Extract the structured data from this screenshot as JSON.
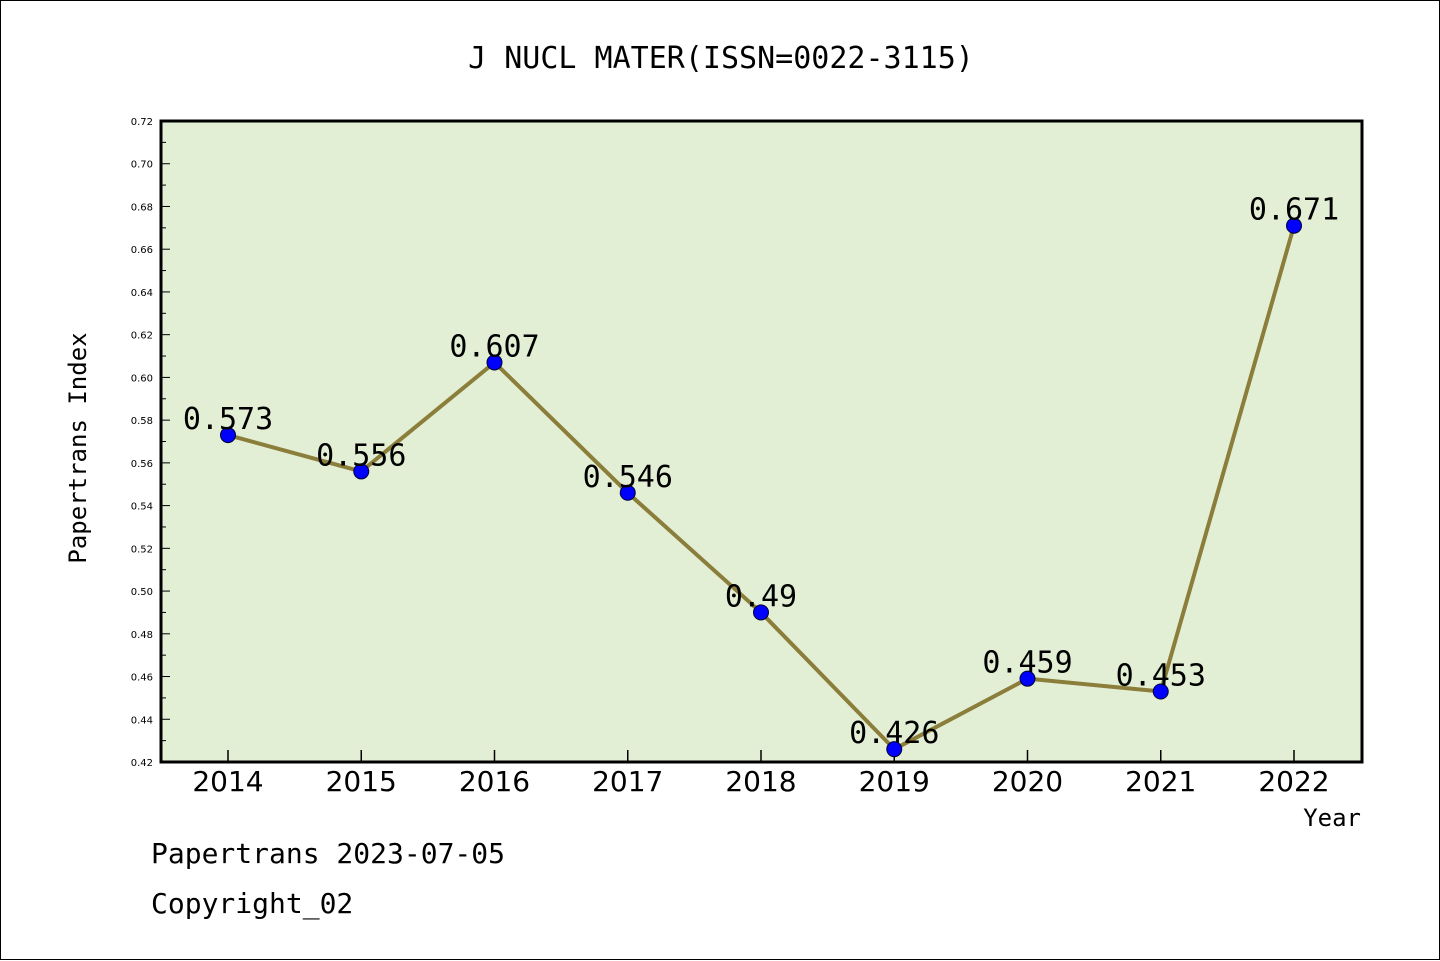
{
  "chart_data": {
    "type": "line",
    "title": "J NUCL MATER(ISSN=0022-3115)",
    "xlabel": "Year",
    "ylabel": "Papertrans Index",
    "categories": [
      "2014",
      "2015",
      "2016",
      "2017",
      "2018",
      "2019",
      "2020",
      "2021",
      "2022"
    ],
    "series": [
      {
        "values": [
          0.573,
          0.556,
          0.607,
          0.546,
          0.49,
          0.426,
          0.459,
          0.453,
          0.671
        ],
        "labels": [
          "0.573",
          "0.556",
          "0.607",
          "0.546",
          "0.49",
          "0.426",
          "0.459",
          "0.453",
          "0.671"
        ]
      }
    ],
    "ylim": [
      0.42,
      0.72
    ],
    "yticks": [
      "0.42",
      "0.44",
      "0.46",
      "0.48",
      "0.50",
      "0.52",
      "0.54",
      "0.56",
      "0.58",
      "0.60",
      "0.62",
      "0.64",
      "0.66",
      "0.68",
      "0.70",
      "0.72"
    ],
    "grid": false,
    "colors": {
      "plot_bg": "#e2efd5",
      "line": "#8b7d3a",
      "marker": "#0000ff"
    }
  },
  "footer": {
    "line1": "Papertrans 2023-07-05",
    "line2": "Copyright_02"
  }
}
